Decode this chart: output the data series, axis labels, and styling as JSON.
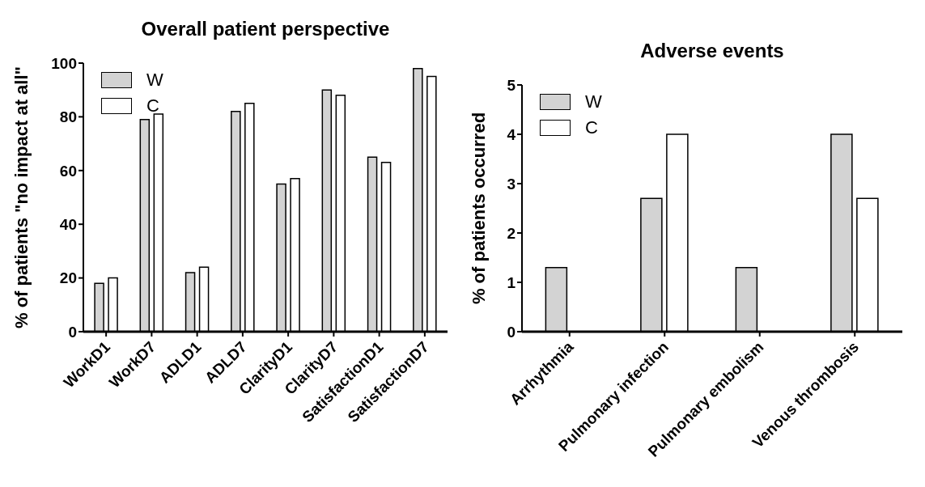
{
  "chart_data": [
    {
      "type": "bar",
      "title": "Overall patient perspective",
      "ylabel": "% of patients \"no impact at all\"",
      "categories": [
        "WorkD1",
        "WorkD7",
        "ADLD1",
        "ADLD7",
        "ClarityD1",
        "ClarityD7",
        "SatisfactionD1",
        "SatisfactionD7"
      ],
      "series": [
        {
          "name": "W",
          "color": "#d3d3d3",
          "values": [
            18,
            79,
            22,
            82,
            55,
            90,
            65,
            98
          ]
        },
        {
          "name": "C",
          "color": "#ffffff",
          "values": [
            20,
            81,
            24,
            85,
            57,
            88,
            63,
            95
          ]
        }
      ],
      "ylim": [
        0,
        100
      ],
      "yticks": [
        0,
        20,
        40,
        60,
        80,
        100
      ],
      "grid": false,
      "legend": "top left"
    },
    {
      "type": "bar",
      "title": "Adverse events",
      "ylabel": "% of patients occurred",
      "categories": [
        "Arrhythmia",
        "Pulmonary infection",
        "Pulmonary embolism",
        "Venous thrombosis"
      ],
      "series": [
        {
          "name": "W",
          "color": "#d3d3d3",
          "values": [
            1.3,
            2.7,
            1.3,
            4
          ]
        },
        {
          "name": "C",
          "color": "#ffffff",
          "values": [
            0,
            4,
            0,
            2.7
          ]
        }
      ],
      "ylim": [
        0,
        5
      ],
      "yticks": [
        0,
        1,
        2,
        3,
        4,
        5
      ],
      "grid": false,
      "legend": "top left"
    }
  ]
}
